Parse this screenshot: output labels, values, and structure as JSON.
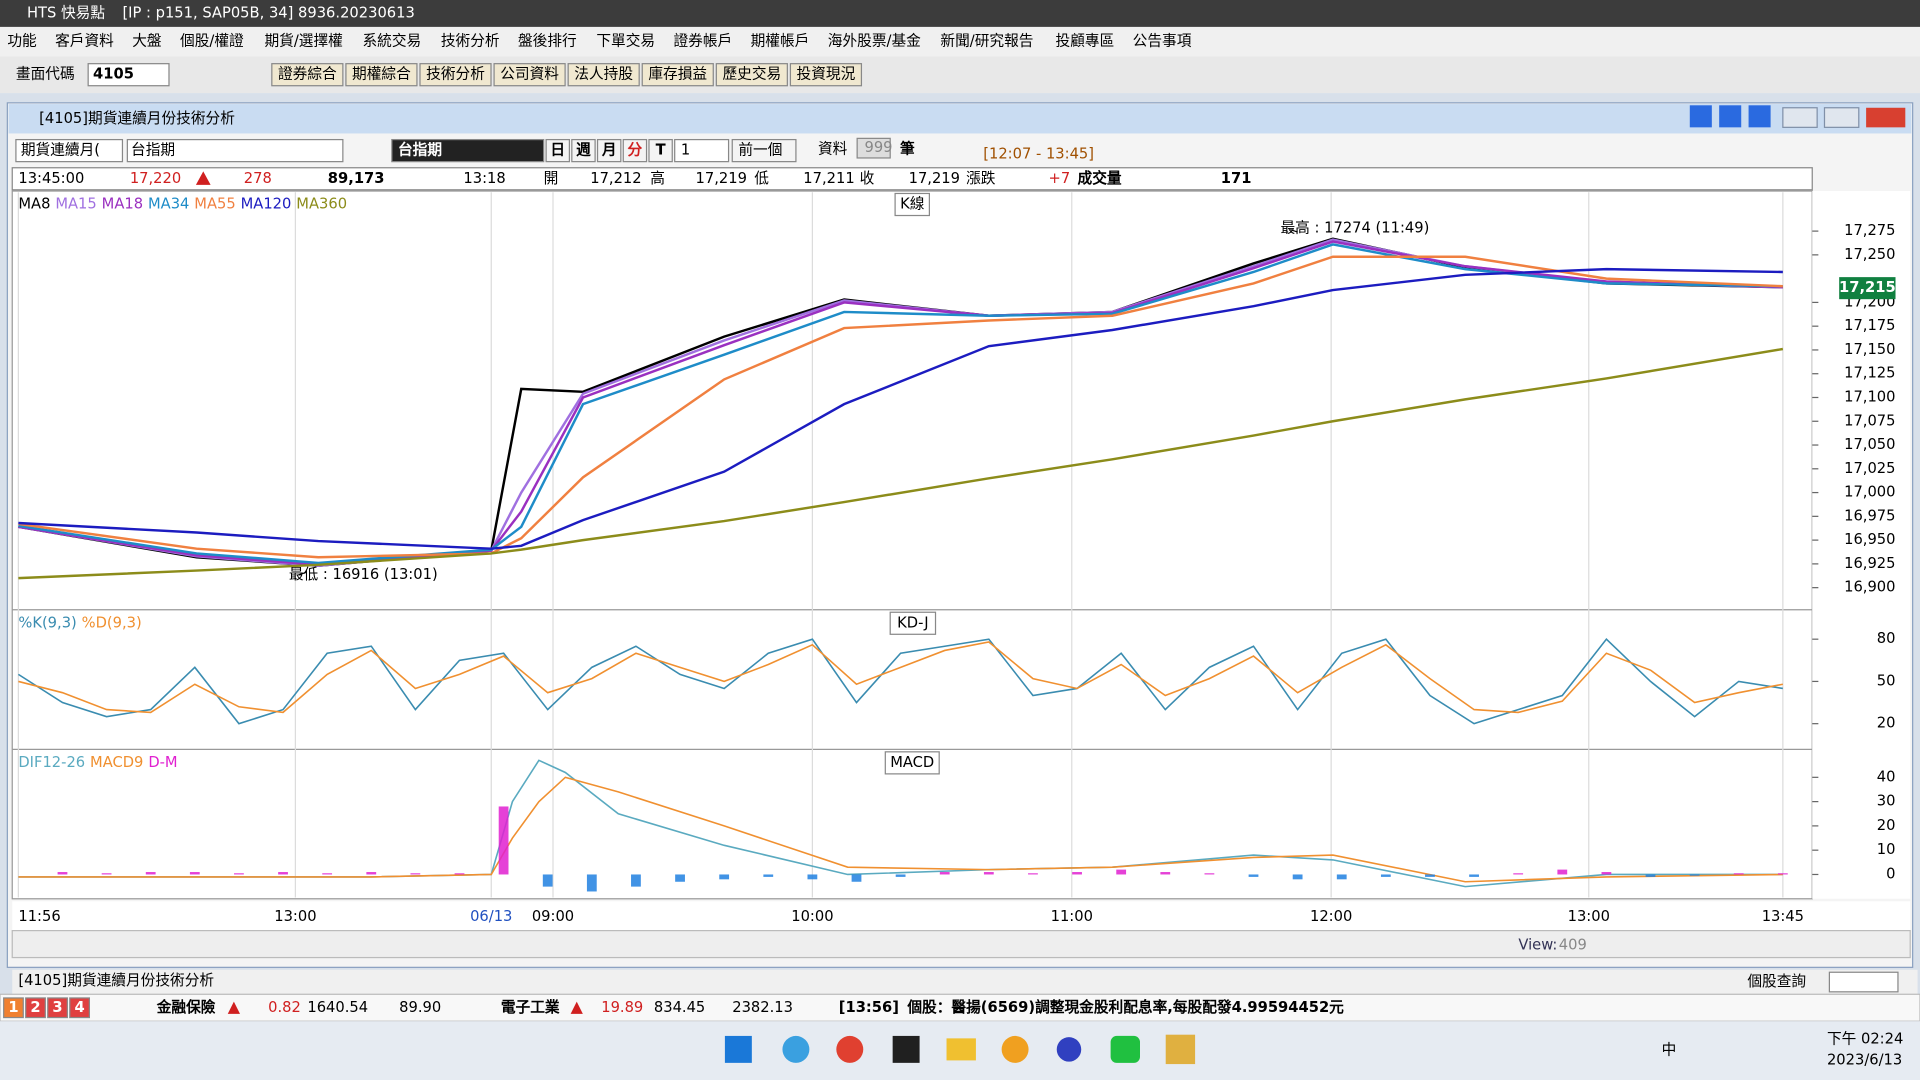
{
  "title_bar": {
    "app": "HTS 快易點",
    "info": "[IP : p151, SAP05B, 34] 8936.20230613"
  },
  "menu": [
    "功能",
    "客戶資料",
    "大盤",
    "個股/權證",
    "期貨/選擇權",
    "系統交易",
    "技術分析",
    "盤後排行",
    "下單交易",
    "證券帳戶",
    "期權帳戶",
    "海外股票/基金",
    "新聞/研究報告",
    "投顧專區",
    "公告事項"
  ],
  "toolbar": {
    "code_label": "畫面代碼",
    "code": "4105",
    "buttons": [
      "證券綜合",
      "期權綜合",
      "技術分析",
      "公司資料",
      "法人持股",
      "庫存損益",
      "歷史交易",
      "投資現況"
    ]
  },
  "window": {
    "title": "[4105]期貨連續月份技術分析",
    "controls": {
      "market": "期貨連續月(",
      "symbol": "台指期",
      "name": "台指期",
      "periods": [
        "日",
        "週",
        "月",
        "分",
        "T"
      ],
      "interval": "1",
      "prev": "前一個",
      "data_label": "資料",
      "data_count": "999",
      "unit": "筆",
      "range": "[12:07 - 13:45]"
    },
    "quote": {
      "time": "13:45:00",
      "price": "17,220",
      "change": "278",
      "volume": "89,173",
      "last_time": "13:18",
      "open_label": "開",
      "open": "17,212",
      "high_label": "高",
      "high": "17,219",
      "low_label": "低",
      "low": "17,211",
      "close_label": "收",
      "close": "17,219",
      "chg_label": "漲跌",
      "chg": "+7",
      "vol_label": "成交量",
      "vol": "171"
    }
  },
  "chart_data": [
    {
      "type": "line",
      "title": "K線",
      "xlim": [
        0,
        100
      ],
      "ylim": [
        16878,
        17312
      ],
      "yticks": [
        {
          "value": 16900,
          "label": "16,900"
        },
        {
          "value": 16925,
          "label": "16,925"
        },
        {
          "value": 16950,
          "label": "16,950"
        },
        {
          "value": 16975,
          "label": "16,975"
        },
        {
          "value": 17000,
          "label": "17,000"
        },
        {
          "value": 17025,
          "label": "17,025"
        },
        {
          "value": 17050,
          "label": "17,050"
        },
        {
          "value": 17075,
          "label": "17,075"
        },
        {
          "value": 17100,
          "label": "17,100"
        },
        {
          "value": 17125,
          "label": "17,125"
        },
        {
          "value": 17150,
          "label": "17,150"
        },
        {
          "value": 17175,
          "label": "17,175"
        },
        {
          "value": 17200,
          "label": "17,200"
        },
        {
          "value": 17250,
          "label": "17,250"
        },
        {
          "value": 17275,
          "label": "17,275"
        }
      ],
      "current": {
        "value": 17215,
        "label": "17,215"
      },
      "annotations": [
        {
          "text": "最高 : 17274 (11:49)",
          "x": 72.5,
          "y": 17274
        },
        {
          "text": "最低 : 16916 (13:01)",
          "x": 16.3,
          "y": 16916
        }
      ],
      "series": [
        {
          "name": "MA8",
          "color": "#000000",
          "x": [
            0,
            10.1,
            17,
            26.8,
            28.5,
            32,
            40,
            46.8,
            55,
            62,
            70,
            74.5,
            82,
            90,
            100
          ],
          "values": [
            16964,
            16932,
            16923,
            16939,
            17109,
            17106,
            17164,
            17203,
            17186,
            17190,
            17241,
            17267,
            17237,
            17220,
            17216
          ]
        },
        {
          "name": "MA15",
          "color": "#a070e0",
          "x": [
            0,
            10.1,
            17,
            26.8,
            28.5,
            32,
            40,
            46.8,
            55,
            62,
            70,
            74.5,
            82,
            90,
            100
          ],
          "values": [
            16964,
            16933,
            16923,
            16939,
            17000,
            17104,
            17160,
            17202,
            17186,
            17190,
            17238,
            17266,
            17238,
            17221,
            17216
          ]
        },
        {
          "name": "MA18",
          "color": "#9a30c0",
          "x": [
            0,
            10.1,
            17,
            26.8,
            28.5,
            32,
            40,
            46.8,
            55,
            62,
            70,
            74.5,
            82,
            90,
            100
          ],
          "values": [
            16964,
            16934,
            16924,
            16939,
            16980,
            17100,
            17155,
            17200,
            17186,
            17189,
            17236,
            17264,
            17238,
            17222,
            17216
          ]
        },
        {
          "name": "MA34",
          "color": "#1e8cc8",
          "x": [
            0,
            10.1,
            17,
            26.8,
            28.5,
            32,
            40,
            46.8,
            55,
            62,
            70,
            74.5,
            82,
            90,
            100
          ],
          "values": [
            16965,
            16936,
            16926,
            16940,
            16964,
            17093,
            17145,
            17190,
            17186,
            17188,
            17232,
            17261,
            17235,
            17220,
            17217
          ]
        },
        {
          "name": "MA55",
          "color": "#f08040",
          "x": [
            0,
            10.1,
            17,
            26.8,
            28.5,
            32,
            40,
            46.8,
            55,
            62,
            70,
            74.5,
            82,
            90,
            100
          ],
          "values": [
            16967,
            16941,
            16932,
            16936,
            16952,
            17016,
            17119,
            17173,
            17181,
            17186,
            17220,
            17248,
            17248,
            17225,
            17217
          ]
        },
        {
          "name": "MA120",
          "color": "#1c1cc0",
          "x": [
            0,
            10.1,
            17,
            26.8,
            28.5,
            32,
            40,
            46.8,
            55,
            62,
            70,
            74.5,
            82,
            90,
            100
          ],
          "values": [
            16968,
            16958,
            16949,
            16941,
            16944,
            16971,
            17022,
            17093,
            17154,
            17171,
            17196,
            17213,
            17229,
            17235,
            17232
          ]
        },
        {
          "name": "MA360",
          "color": "#8c8c1a",
          "x": [
            0,
            10.1,
            17,
            26.8,
            28.5,
            32,
            40,
            46.8,
            55,
            62,
            70,
            74.5,
            82,
            90,
            100
          ],
          "values": [
            16910,
            16918,
            16924,
            16936,
            16940,
            16950,
            16970,
            16990,
            17015,
            17035,
            17060,
            17075,
            17098,
            17120,
            17151
          ]
        }
      ]
    },
    {
      "type": "line",
      "title": "KD-J",
      "xlim": [
        0,
        100
      ],
      "ylim": [
        0,
        100
      ],
      "yticks": [
        20,
        50,
        80
      ],
      "series": [
        {
          "name": "%K(9,3)",
          "color": "#3a8cb0",
          "x": [
            0,
            2.5,
            5,
            7.5,
            10,
            12.5,
            15,
            17.5,
            20,
            22.5,
            25,
            27.5,
            30,
            32.5,
            35,
            37.5,
            40,
            42.5,
            45,
            47.5,
            50,
            52.5,
            55,
            57.5,
            60,
            62.5,
            65,
            67.5,
            70,
            72.5,
            75,
            77.5,
            80,
            82.5,
            85,
            87.5,
            90,
            92.5,
            95,
            97.5,
            100
          ],
          "values": [
            55,
            35,
            25,
            30,
            60,
            20,
            30,
            70,
            75,
            30,
            65,
            70,
            30,
            60,
            75,
            55,
            45,
            70,
            80,
            35,
            70,
            75,
            80,
            40,
            45,
            70,
            30,
            60,
            75,
            30,
            70,
            80,
            40,
            20,
            30,
            40,
            80,
            50,
            25,
            50,
            45
          ]
        },
        {
          "name": "%D(9,3)",
          "color": "#f09030",
          "x": [
            0,
            2.5,
            5,
            7.5,
            10,
            12.5,
            15,
            17.5,
            20,
            22.5,
            25,
            27.5,
            30,
            32.5,
            35,
            37.5,
            40,
            42.5,
            45,
            47.5,
            50,
            52.5,
            55,
            57.5,
            60,
            62.5,
            65,
            67.5,
            70,
            72.5,
            75,
            77.5,
            80,
            82.5,
            85,
            87.5,
            90,
            92.5,
            95,
            97.5,
            100
          ],
          "values": [
            50,
            42,
            30,
            28,
            48,
            32,
            28,
            55,
            72,
            45,
            55,
            68,
            42,
            52,
            70,
            60,
            50,
            62,
            76,
            48,
            60,
            72,
            78,
            52,
            45,
            62,
            40,
            52,
            68,
            42,
            60,
            76,
            52,
            30,
            28,
            36,
            70,
            58,
            35,
            42,
            48
          ]
        }
      ]
    },
    {
      "type": "line",
      "title": "MACD",
      "xlim": [
        0,
        100
      ],
      "ylim": [
        -9,
        51
      ],
      "yticks": [
        0,
        10,
        20,
        30,
        40
      ],
      "xticks": [
        {
          "value": 0,
          "label": "11:56"
        },
        {
          "value": 15.7,
          "label": "13:00"
        },
        {
          "value": 26.8,
          "label": "06/13"
        },
        {
          "value": 30.3,
          "label": "09:00"
        },
        {
          "value": 45,
          "label": "10:00"
        },
        {
          "value": 59.7,
          "label": "11:00"
        },
        {
          "value": 74.4,
          "label": "12:00"
        },
        {
          "value": 89,
          "label": "13:00"
        },
        {
          "value": 100,
          "label": "13:45"
        }
      ],
      "series": [
        {
          "name": "DIF12-26",
          "color": "#5aaac0",
          "x": [
            0,
            20,
            26.8,
            28,
            29.5,
            31,
            34,
            40,
            47,
            55,
            62,
            70,
            74.5,
            82,
            90,
            100
          ],
          "values": [
            -1,
            -1,
            0,
            30,
            47,
            42,
            25,
            12,
            0,
            2,
            3,
            8,
            6,
            -5,
            0,
            0
          ]
        },
        {
          "name": "MACD9",
          "color": "#f09030",
          "x": [
            0,
            20,
            26.8,
            28,
            29.5,
            31,
            34,
            40,
            47,
            55,
            62,
            70,
            74.5,
            82,
            90,
            100
          ],
          "values": [
            -1,
            -1,
            0,
            15,
            30,
            40,
            34,
            20,
            3,
            2,
            3,
            7,
            8,
            -3,
            -1,
            0
          ]
        },
        {
          "name": "D-M",
          "type": "bar",
          "color": "#e020d0",
          "negative_color": "#2080e0",
          "x": [
            0,
            2.5,
            5,
            7.5,
            10,
            12.5,
            15,
            17.5,
            20,
            22.5,
            25,
            27.5,
            30,
            32.5,
            35,
            37.5,
            40,
            42.5,
            45,
            47.5,
            50,
            52.5,
            55,
            57.5,
            60,
            62.5,
            65,
            67.5,
            70,
            72.5,
            75,
            77.5,
            80,
            82.5,
            85,
            87.5,
            90,
            92.5,
            95,
            97.5,
            100
          ],
          "values": [
            0,
            1,
            0.5,
            1,
            1,
            0.5,
            1,
            0.5,
            1,
            0.5,
            0.5,
            28,
            -5,
            -7,
            -5,
            -3,
            -2,
            -1,
            -2,
            -3,
            -1,
            1,
            1,
            0.5,
            1,
            2,
            1,
            0.5,
            -1,
            -2,
            -2,
            -1,
            -1,
            -1,
            0.5,
            2,
            1,
            -1,
            -0.5,
            0.5,
            0.5
          ]
        }
      ]
    }
  ],
  "footer": {
    "view_label": "View:",
    "view": "409",
    "tab": "[4105]期貨連續月份技術分析",
    "lookup": "個股查詢"
  },
  "status": {
    "tabs": [
      "1",
      "2",
      "3",
      "4"
    ],
    "sector1": "金融保險",
    "s1_chg": "0.82",
    "s1_idx": "1640.54",
    "s1_val": "89.90",
    "sector2": "電子工業",
    "s2_chg": "19.89",
    "s2_idx": "834.45",
    "s2_val": "2382.13",
    "news_time": "[13:56]",
    "news": "個股：醫揚(6569)調整現金股利配息率,每股配發4.99594452元"
  },
  "taskbar": {
    "ime": "中",
    "time": "下午 02:24",
    "date": "2023/6/13"
  }
}
